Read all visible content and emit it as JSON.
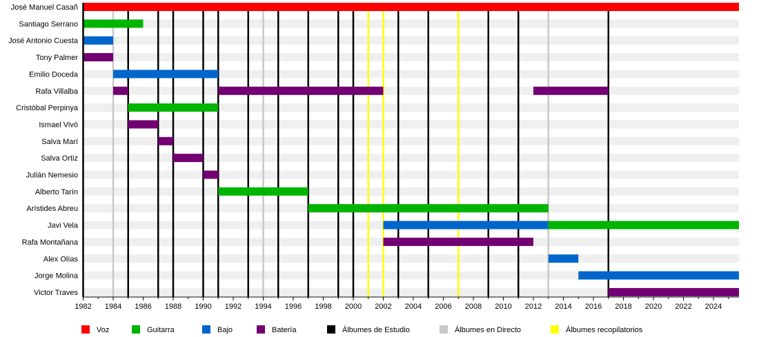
{
  "chart_data": {
    "type": "timeline",
    "title": "",
    "xlim": [
      1982,
      2025.7
    ],
    "x_ticks": [
      1982,
      1984,
      1986,
      1988,
      1990,
      1992,
      1994,
      1996,
      1998,
      2000,
      2002,
      2004,
      2006,
      2008,
      2010,
      2012,
      2014,
      2016,
      2018,
      2020,
      2022,
      2024
    ],
    "colors": {
      "Voz": "#ff0000",
      "Guitarra": "#00b400",
      "Bajo": "#0066cc",
      "Batería": "#730073",
      "Álbumes de Estudio": "#000000",
      "Álbumes en Directo": "#c8c8c8",
      "Álbumes recopilatorios": "#ffff00"
    },
    "members": [
      {
        "name": "José Manuel Casañ",
        "periods": [
          {
            "role": "Voz",
            "start": 1982,
            "end": 2025.7
          }
        ]
      },
      {
        "name": "Santiago Serrano",
        "periods": [
          {
            "role": "Guitarra",
            "start": 1982,
            "end": 1986
          }
        ]
      },
      {
        "name": "José Antonio Cuesta",
        "periods": [
          {
            "role": "Bajo",
            "start": 1982,
            "end": 1984
          }
        ]
      },
      {
        "name": "Tony Palmer",
        "periods": [
          {
            "role": "Batería",
            "start": 1982,
            "end": 1984
          }
        ]
      },
      {
        "name": "Emilio Doceda",
        "periods": [
          {
            "role": "Bajo",
            "start": 1984,
            "end": 1991
          }
        ]
      },
      {
        "name": "Rafa Villalba",
        "periods": [
          {
            "role": "Batería",
            "start": 1984,
            "end": 1985
          },
          {
            "role": "Batería",
            "start": 1991,
            "end": 2002
          },
          {
            "role": "Batería",
            "start": 2012,
            "end": 2017
          }
        ]
      },
      {
        "name": "Cristóbal Perpinya",
        "periods": [
          {
            "role": "Guitarra",
            "start": 1985,
            "end": 1991
          }
        ]
      },
      {
        "name": "Ismael Vivó",
        "periods": [
          {
            "role": "Batería",
            "start": 1985,
            "end": 1987
          }
        ]
      },
      {
        "name": "Salva Marí",
        "periods": [
          {
            "role": "Batería",
            "start": 1987,
            "end": 1988
          }
        ]
      },
      {
        "name": "Salva Ortiz",
        "periods": [
          {
            "role": "Batería",
            "start": 1988,
            "end": 1990
          }
        ]
      },
      {
        "name": "Julián Nemesio",
        "periods": [
          {
            "role": "Batería",
            "start": 1990,
            "end": 1991
          }
        ]
      },
      {
        "name": "Alberto Tarín",
        "periods": [
          {
            "role": "Guitarra",
            "start": 1991,
            "end": 1997
          }
        ]
      },
      {
        "name": "Arístides Abreu",
        "periods": [
          {
            "role": "Guitarra",
            "start": 1997,
            "end": 2013
          }
        ]
      },
      {
        "name": "Javi Vela",
        "periods": [
          {
            "role": "Bajo",
            "start": 2002,
            "end": 2013
          },
          {
            "role": "Guitarra",
            "start": 2013,
            "end": 2025.7
          }
        ]
      },
      {
        "name": "Rafa Montañana",
        "periods": [
          {
            "role": "Batería",
            "start": 2002,
            "end": 2012
          }
        ]
      },
      {
        "name": "Alex Olías",
        "periods": [
          {
            "role": "Bajo",
            "start": 2013,
            "end": 2015
          }
        ]
      },
      {
        "name": "Jorge Molina",
        "periods": [
          {
            "role": "Bajo",
            "start": 2015,
            "end": 2025.7
          }
        ]
      },
      {
        "name": "Victor Traves",
        "periods": [
          {
            "role": "Batería",
            "start": 2017,
            "end": 2025.7
          }
        ]
      }
    ],
    "events": [
      {
        "type": "Álbumes en Directo",
        "years": [
          1984,
          1994,
          2013
        ]
      },
      {
        "type": "Álbumes recopilatorios",
        "years": [
          2001,
          2002,
          2007
        ]
      },
      {
        "type": "Álbumes de Estudio",
        "years": [
          1985,
          1987,
          1988,
          1990,
          1991,
          1993,
          1995,
          1997,
          1999,
          2000,
          2003,
          2005,
          2009,
          2011,
          2017
        ]
      }
    ],
    "legend": {
      "placement": "bottom",
      "entries": [
        "Voz",
        "Guitarra",
        "Bajo",
        "Batería",
        "Álbumes de Estudio",
        "Álbumes en Directo",
        "Álbumes recopilatorios"
      ]
    }
  }
}
